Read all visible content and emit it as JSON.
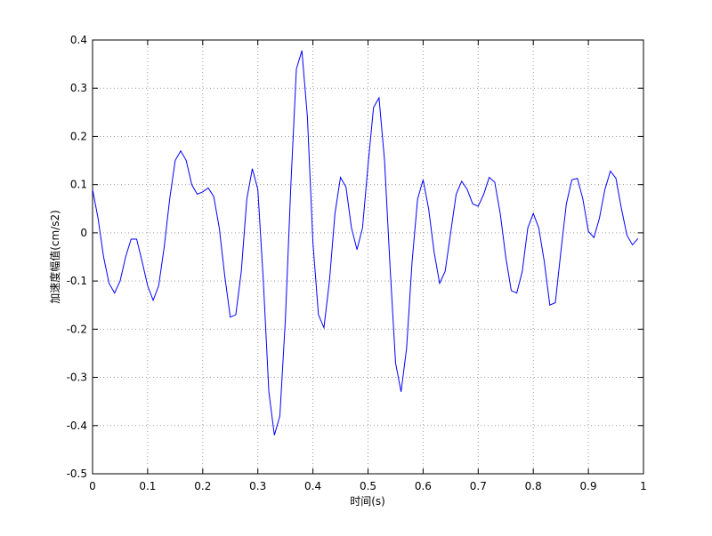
{
  "chart_data": {
    "type": "line",
    "xlabel": "时间(s)",
    "ylabel": "加速度幅值(cm/s2)",
    "x": [
      0,
      0.01,
      0.02,
      0.03,
      0.04,
      0.05,
      0.06,
      0.07,
      0.08,
      0.09,
      0.1,
      0.11,
      0.12,
      0.13,
      0.14,
      0.15,
      0.16,
      0.17,
      0.18,
      0.19,
      0.2,
      0.21,
      0.22,
      0.23,
      0.24,
      0.25,
      0.26,
      0.27,
      0.28,
      0.29,
      0.3,
      0.31,
      0.32,
      0.33,
      0.34,
      0.35,
      0.36,
      0.37,
      0.38,
      0.39,
      0.4,
      0.41,
      0.42,
      0.43,
      0.44,
      0.45,
      0.46,
      0.47,
      0.48,
      0.49,
      0.5,
      0.51,
      0.52,
      0.53,
      0.54,
      0.55,
      0.56,
      0.57,
      0.58,
      0.59,
      0.6,
      0.61,
      0.62,
      0.63,
      0.64,
      0.65,
      0.66,
      0.67,
      0.68,
      0.69,
      0.7,
      0.71,
      0.72,
      0.73,
      0.74,
      0.75,
      0.76,
      0.77,
      0.78,
      0.79,
      0.8,
      0.81,
      0.82,
      0.83,
      0.84,
      0.85,
      0.86,
      0.87,
      0.88,
      0.89,
      0.9,
      0.91,
      0.92,
      0.93,
      0.94,
      0.95,
      0.96,
      0.97,
      0.98,
      0.99
    ],
    "series": [
      {
        "color": "#0000ff",
        "values": [
          0.09,
          0.03,
          -0.05,
          -0.105,
          -0.125,
          -0.1,
          -0.05,
          -0.013,
          -0.013,
          -0.06,
          -0.11,
          -0.14,
          -0.11,
          -0.03,
          0.07,
          0.15,
          0.17,
          0.15,
          0.1,
          0.08,
          0.085,
          0.093,
          0.075,
          0.01,
          -0.09,
          -0.175,
          -0.17,
          -0.08,
          0.07,
          0.133,
          0.09,
          -0.1,
          -0.33,
          -0.42,
          -0.38,
          -0.18,
          0.1,
          0.34,
          0.378,
          0.24,
          -0.02,
          -0.17,
          -0.197,
          -0.1,
          0.04,
          0.115,
          0.095,
          0.01,
          -0.035,
          0.01,
          0.14,
          0.26,
          0.28,
          0.15,
          -0.07,
          -0.27,
          -0.33,
          -0.24,
          -0.06,
          0.07,
          0.11,
          0.05,
          -0.04,
          -0.105,
          -0.08,
          0,
          0.08,
          0.107,
          0.09,
          0.06,
          0.055,
          0.08,
          0.115,
          0.105,
          0.04,
          -0.05,
          -0.12,
          -0.125,
          -0.08,
          0.01,
          0.04,
          0.01,
          -0.06,
          -0.15,
          -0.145,
          -0.04,
          0.06,
          0.11,
          0.113,
          0.07,
          0.003,
          -0.01,
          0.03,
          0.09,
          0.128,
          0.113,
          0.05,
          -0.005,
          -0.025,
          -0.012
        ]
      }
    ],
    "xlim": [
      0,
      1
    ],
    "xticks": [
      0,
      0.1,
      0.2,
      0.3,
      0.4,
      0.5,
      0.6,
      0.7,
      0.8,
      0.9,
      1
    ],
    "ylim": [
      -0.5,
      0.4
    ],
    "yticks": [
      -0.5,
      -0.4,
      -0.3,
      -0.2,
      -0.1,
      0,
      0.1,
      0.2,
      0.3,
      0.4
    ],
    "grid": true
  }
}
